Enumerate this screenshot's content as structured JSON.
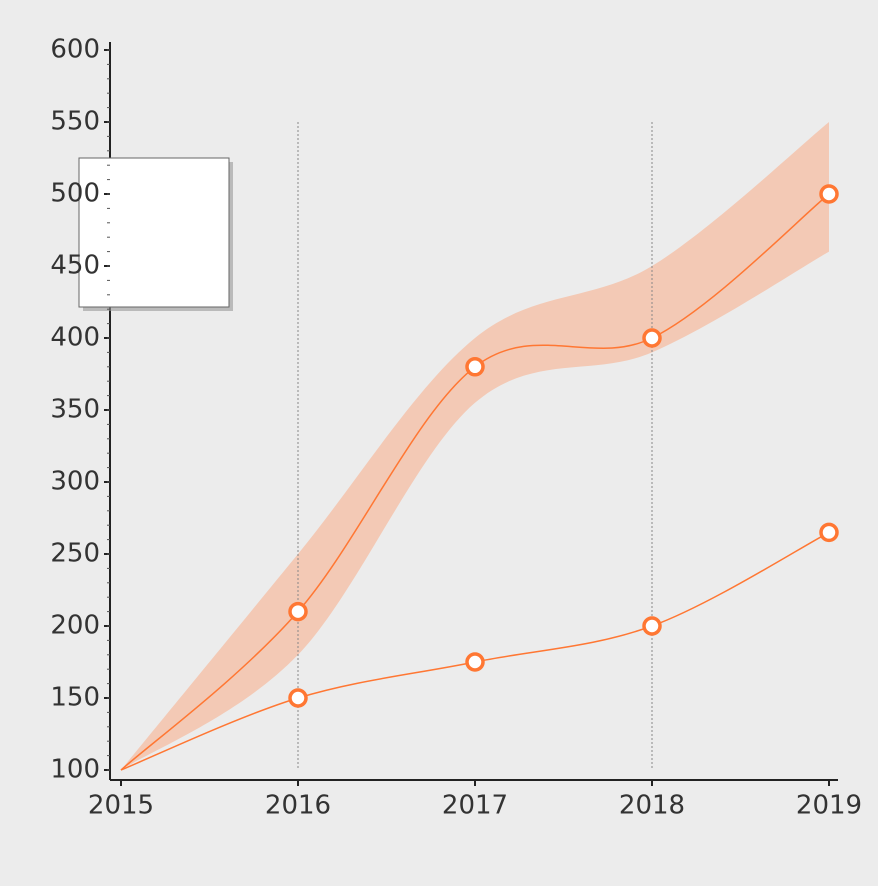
{
  "chart_data": {
    "type": "line",
    "x": [
      2015,
      2016,
      2017,
      2018,
      2019
    ],
    "xlim": [
      2015,
      2019
    ],
    "xticks": [
      2015,
      2016,
      2017,
      2018,
      2019
    ],
    "ylim": [
      100,
      600
    ],
    "yticks": [
      100,
      150,
      200,
      250,
      300,
      350,
      400,
      450,
      500,
      550,
      600
    ],
    "series": [
      {
        "color": "#ff7733",
        "values": [
          100,
          210,
          380,
          400,
          500
        ],
        "band_low": [
          100,
          180,
          355,
          390,
          460
        ],
        "band_high": [
          100,
          250,
          400,
          450,
          550
        ],
        "band_color": "#f3c9b5"
      },
      {
        "color": "#ff7733",
        "values": [
          100,
          150,
          175,
          200,
          265
        ]
      }
    ]
  }
}
